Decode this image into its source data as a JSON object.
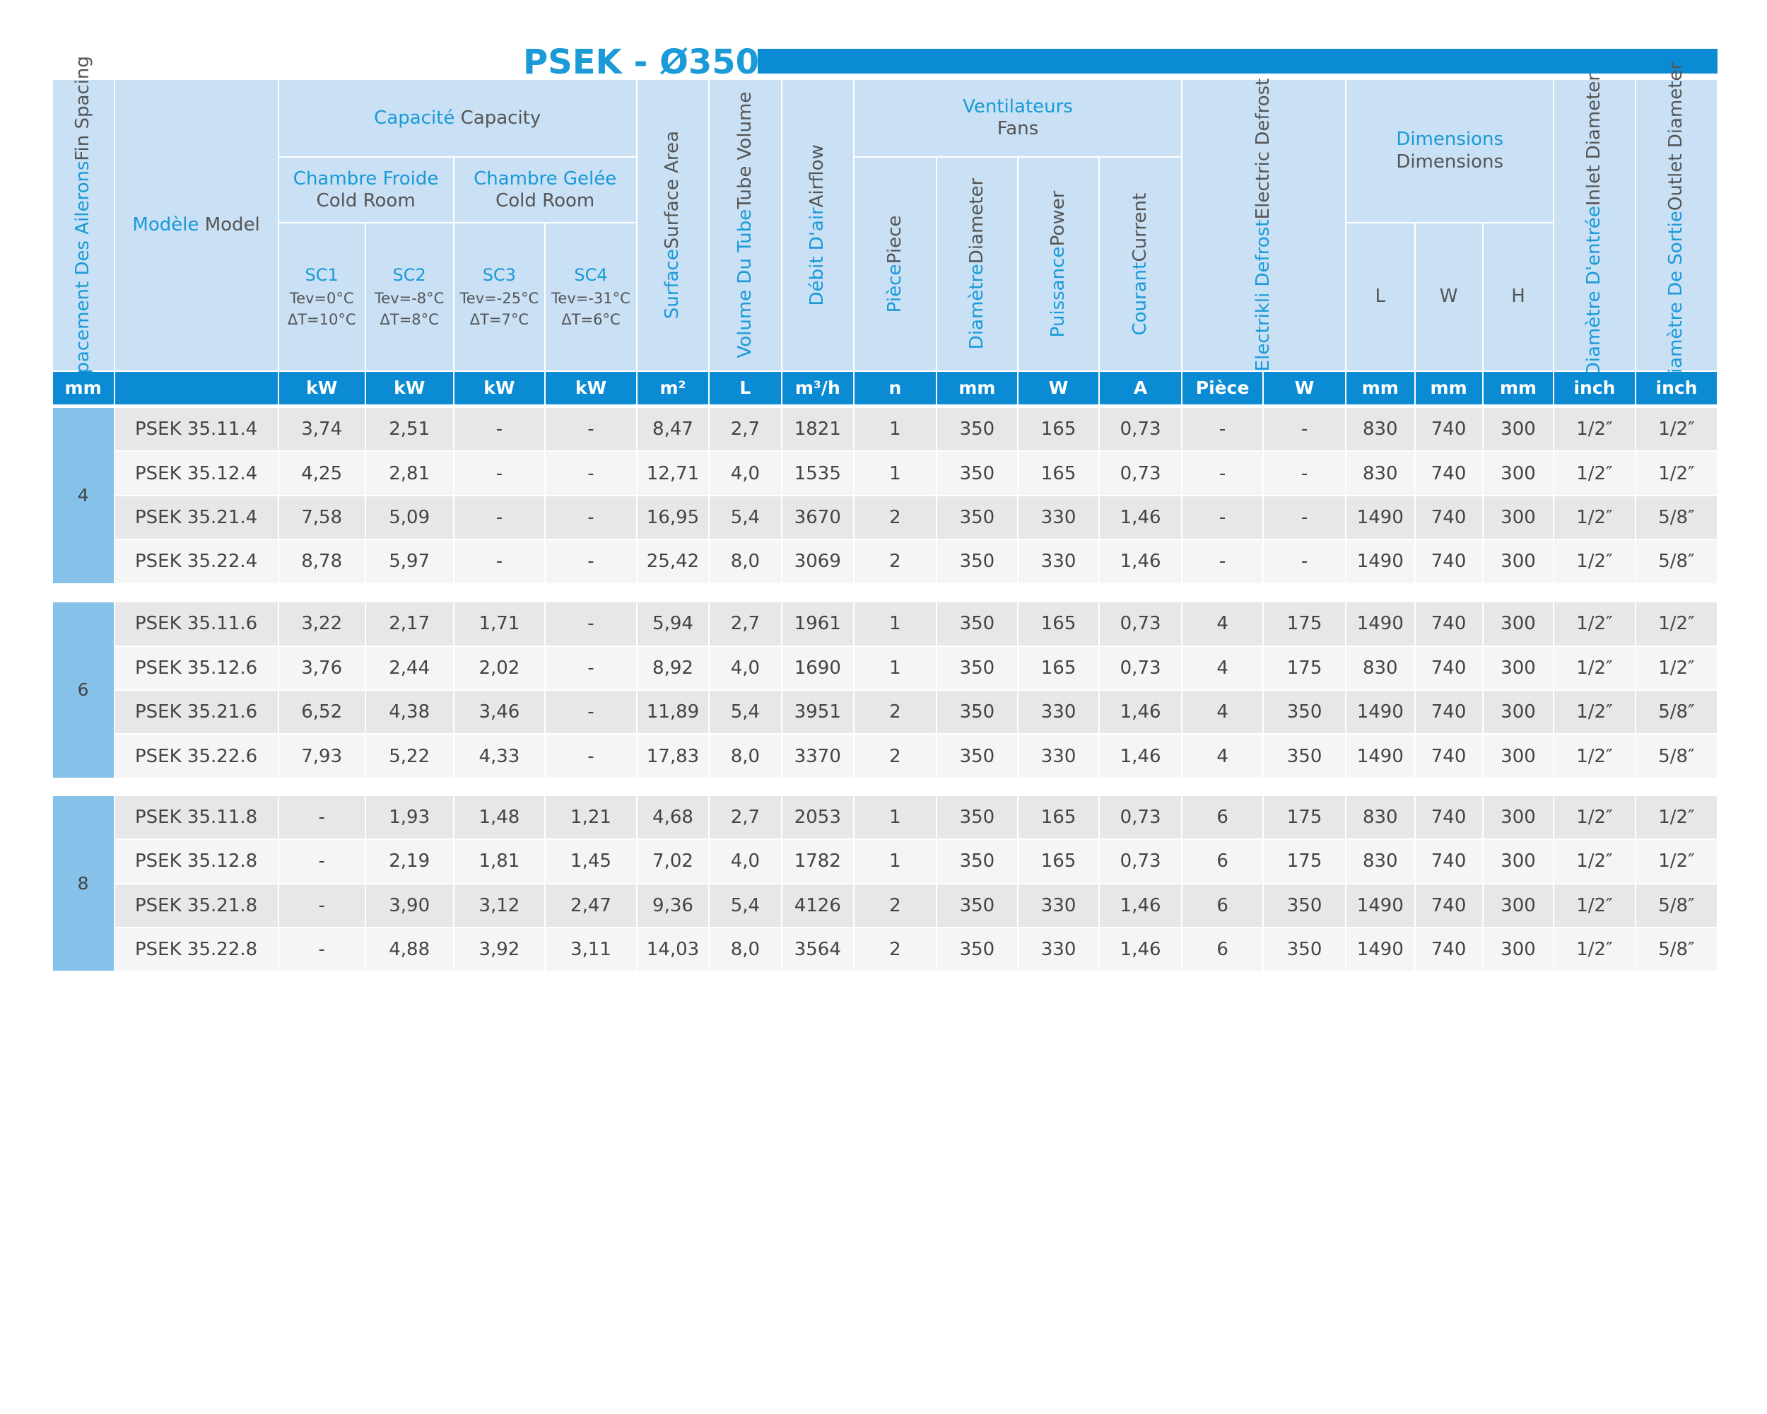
{
  "title": "PSEK - Ø350",
  "header": {
    "fin_spacing": {
      "fr": "Espacement Des Ailerons",
      "en": "Fin Spacing"
    },
    "model": {
      "fr": "Modèle",
      "en": "Model"
    },
    "capacity": {
      "fr": "Capacité",
      "en": "Capacity"
    },
    "cold_room": {
      "fr": "Chambre Froide",
      "en": "Cold Room"
    },
    "freezer_room": {
      "fr": "Chambre Gelée",
      "en": "Cold Room"
    },
    "conditions": [
      {
        "name": "SC1",
        "tev": "Tev=0°C",
        "dt": "ΔT=10°C"
      },
      {
        "name": "SC2",
        "tev": "Tev=-8°C",
        "dt": "ΔT=8°C"
      },
      {
        "name": "SC3",
        "tev": "Tev=-25°C",
        "dt": "ΔT=7°C"
      },
      {
        "name": "SC4",
        "tev": "Tev=-31°C",
        "dt": "ΔT=6°C"
      }
    ],
    "surface": {
      "fr": "Surface",
      "en": "Surface Area"
    },
    "tube_volume": {
      "fr": "Volume Du Tube",
      "en": "Tube Volume"
    },
    "airflow": {
      "fr": "Débit D'air",
      "en": "Airflow"
    },
    "fans": {
      "fr": "Ventilateurs",
      "en": "Fans"
    },
    "piece": {
      "fr": "Pièce",
      "en": "Piece"
    },
    "diameter": {
      "fr": "Diamètre",
      "en": "Diameter"
    },
    "power": {
      "fr": "Puissance",
      "en": "Power"
    },
    "current": {
      "fr": "Courant",
      "en": "Current"
    },
    "defrost": {
      "fr": "Electrikli Defrost",
      "en": "Electric Defrost"
    },
    "dimensions": {
      "fr": "Dimensions",
      "en": "Dimensions"
    },
    "dims": [
      "L",
      "W",
      "H"
    ],
    "inlet": {
      "fr": "Diamètre D'entrée",
      "en": "Inlet Diameter"
    },
    "outlet": {
      "fr": "Diamètre De Sortie",
      "en": "Outlet Diameter"
    }
  },
  "units": [
    "mm",
    null,
    "kW",
    "kW",
    "kW",
    "kW",
    "m²",
    "L",
    "m³/h",
    "n",
    "mm",
    "W",
    "A",
    "Pièce",
    "W",
    "mm",
    "mm",
    "mm",
    "inch",
    "inch"
  ],
  "groups": [
    {
      "fin": "4",
      "rows": [
        [
          "PSEK 35.11.4",
          "3,74",
          "2,51",
          "-",
          "-",
          "8,47",
          "2,7",
          "1821",
          "1",
          "350",
          "165",
          "0,73",
          "-",
          "-",
          "830",
          "740",
          "300",
          "1/2″",
          "1/2″"
        ],
        [
          "PSEK 35.12.4",
          "4,25",
          "2,81",
          "-",
          "-",
          "12,71",
          "4,0",
          "1535",
          "1",
          "350",
          "165",
          "0,73",
          "-",
          "-",
          "830",
          "740",
          "300",
          "1/2″",
          "1/2″"
        ],
        [
          "PSEK 35.21.4",
          "7,58",
          "5,09",
          "-",
          "-",
          "16,95",
          "5,4",
          "3670",
          "2",
          "350",
          "330",
          "1,46",
          "-",
          "-",
          "1490",
          "740",
          "300",
          "1/2″",
          "5/8″"
        ],
        [
          "PSEK 35.22.4",
          "8,78",
          "5,97",
          "-",
          "-",
          "25,42",
          "8,0",
          "3069",
          "2",
          "350",
          "330",
          "1,46",
          "-",
          "-",
          "1490",
          "740",
          "300",
          "1/2″",
          "5/8″"
        ]
      ]
    },
    {
      "fin": "6",
      "rows": [
        [
          "PSEK 35.11.6",
          "3,22",
          "2,17",
          "1,71",
          "-",
          "5,94",
          "2,7",
          "1961",
          "1",
          "350",
          "165",
          "0,73",
          "4",
          "175",
          "1490",
          "740",
          "300",
          "1/2″",
          "1/2″"
        ],
        [
          "PSEK 35.12.6",
          "3,76",
          "2,44",
          "2,02",
          "-",
          "8,92",
          "4,0",
          "1690",
          "1",
          "350",
          "165",
          "0,73",
          "4",
          "175",
          "830",
          "740",
          "300",
          "1/2″",
          "1/2″"
        ],
        [
          "PSEK 35.21.6",
          "6,52",
          "4,38",
          "3,46",
          "-",
          "11,89",
          "5,4",
          "3951",
          "2",
          "350",
          "330",
          "1,46",
          "4",
          "350",
          "1490",
          "740",
          "300",
          "1/2″",
          "5/8″"
        ],
        [
          "PSEK 35.22.6",
          "7,93",
          "5,22",
          "4,33",
          "-",
          "17,83",
          "8,0",
          "3370",
          "2",
          "350",
          "330",
          "1,46",
          "4",
          "350",
          "1490",
          "740",
          "300",
          "1/2″",
          "5/8″"
        ]
      ]
    },
    {
      "fin": "8",
      "rows": [
        [
          "PSEK 35.11.8",
          "-",
          "1,93",
          "1,48",
          "1,21",
          "4,68",
          "2,7",
          "2053",
          "1",
          "350",
          "165",
          "0,73",
          "6",
          "175",
          "830",
          "740",
          "300",
          "1/2″",
          "1/2″"
        ],
        [
          "PSEK 35.12.8",
          "-",
          "2,19",
          "1,81",
          "1,45",
          "7,02",
          "4,0",
          "1782",
          "1",
          "350",
          "165",
          "0,73",
          "6",
          "175",
          "830",
          "740",
          "300",
          "1/2″",
          "1/2″"
        ],
        [
          "PSEK 35.21.8",
          "-",
          "3,90",
          "3,12",
          "2,47",
          "9,36",
          "5,4",
          "4126",
          "2",
          "350",
          "330",
          "1,46",
          "6",
          "350",
          "1490",
          "740",
          "300",
          "1/2″",
          "5/8″"
        ],
        [
          "PSEK 35.22.8",
          "-",
          "4,88",
          "3,92",
          "3,11",
          "14,03",
          "8,0",
          "3564",
          "2",
          "350",
          "330",
          "1,46",
          "6",
          "350",
          "1490",
          "740",
          "300",
          "1/2″",
          "5/8″"
        ]
      ]
    }
  ]
}
